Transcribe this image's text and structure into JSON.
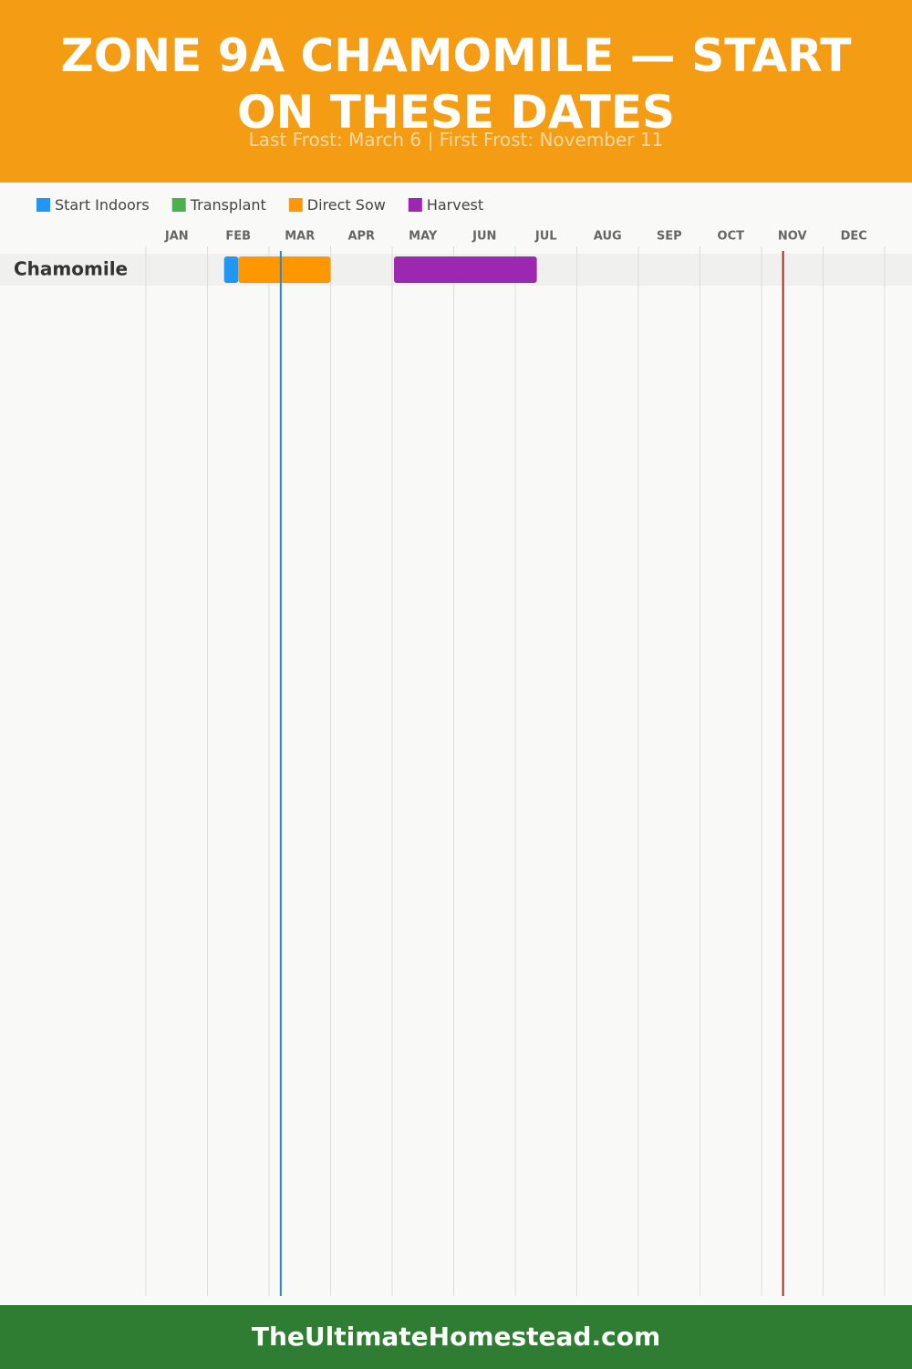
{
  "chart_data": {
    "type": "gantt",
    "title": "ZONE 9A CHAMOMILE — START ON THESE DATES",
    "subtitle": "Last Frost: March 6 | First Frost: November 11",
    "series": [
      {
        "name": "Start Indoors",
        "color": "#2196f3"
      },
      {
        "name": "Transplant",
        "color": "#4caf50"
      },
      {
        "name": "Direct Sow",
        "color": "#ff9800"
      },
      {
        "name": "Harvest",
        "color": "#9c27b0"
      }
    ],
    "categories": [
      "JAN",
      "FEB",
      "MAR",
      "APR",
      "MAY",
      "JUN",
      "JUL",
      "AUG",
      "SEP",
      "OCT",
      "NOV",
      "DEC"
    ],
    "xlim": [
      0,
      12
    ],
    "rows": [
      {
        "name": "Chamomile",
        "bars": [
          {
            "series": 0,
            "start": 1.27,
            "end": 1.5
          },
          {
            "series": 2,
            "start": 1.5,
            "end": 3.0
          },
          {
            "series": 3,
            "start": 4.03,
            "end": 6.35
          }
        ]
      }
    ],
    "frost_lines": [
      {
        "value": 2.19,
        "color": "#1e88e5"
      },
      {
        "value": 10.35,
        "color": "#a52a2a"
      }
    ]
  },
  "footer": "TheUltimateHomestead.com"
}
